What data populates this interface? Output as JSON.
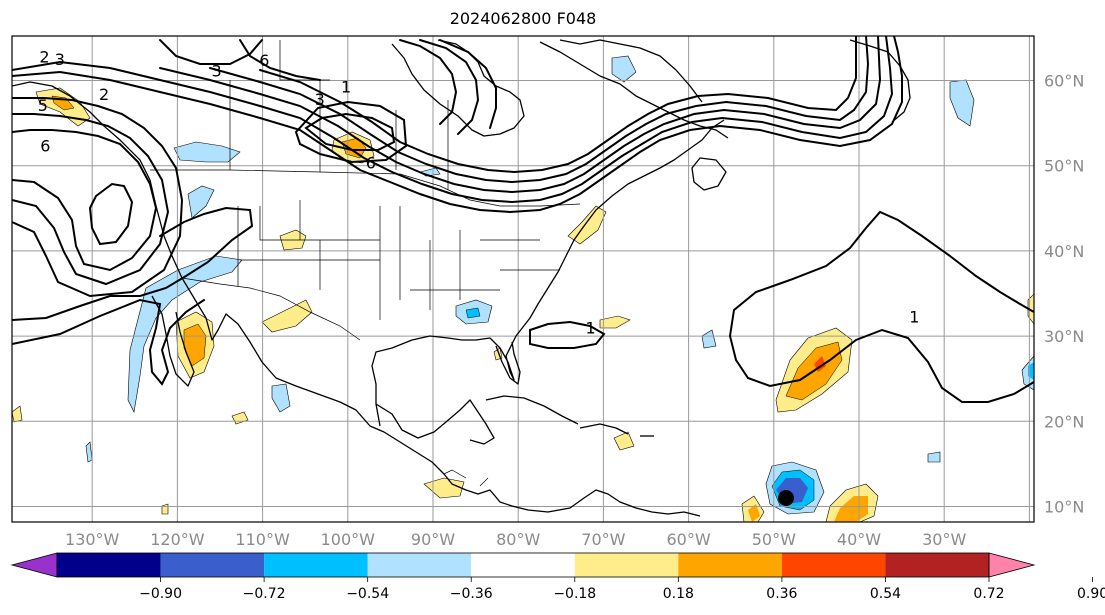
{
  "title": "2024062800 F048",
  "lon_labels": [
    "130°W",
    "120°W",
    "110°W",
    "100°W",
    "90°W",
    "80°W",
    "70°W",
    "60°W",
    "50°W",
    "40°W",
    "30°W"
  ],
  "lat_labels": [
    "10°N",
    "20°N",
    "30°N",
    "40°N",
    "50°N",
    "60°N"
  ],
  "contour_labels": [
    {
      "text": "2",
      "lon": -135.6,
      "lat": 62.8
    },
    {
      "text": "3",
      "lon": -133.8,
      "lat": 62.5
    },
    {
      "text": "5",
      "lon": -135.8,
      "lat": 57.1
    },
    {
      "text": "2",
      "lon": -128.6,
      "lat": 58.4
    },
    {
      "text": "6",
      "lon": -135.5,
      "lat": 52.4
    },
    {
      "text": "3",
      "lon": -115.4,
      "lat": 61.2
    },
    {
      "text": "6",
      "lon": -109.8,
      "lat": 62.4
    },
    {
      "text": "3",
      "lon": -103.3,
      "lat": 57.8
    },
    {
      "text": "1",
      "lon": -100.2,
      "lat": 59.3
    },
    {
      "text": "6",
      "lon": -97.3,
      "lat": 50.4
    },
    {
      "text": "1",
      "lon": -71.5,
      "lat": 31.0
    },
    {
      "text": "1",
      "lon": -33.5,
      "lat": 32.3
    }
  ],
  "colorbar": {
    "ticks": [
      "−0.90",
      "−0.72",
      "−0.54",
      "−0.36",
      "−0.18",
      "0.18",
      "0.36",
      "0.54",
      "0.72",
      "0.90"
    ],
    "colors": [
      "#9932cc",
      "#00008b",
      "#3a5fcd",
      "#00bfff",
      "#b0e2ff",
      "#ffffff",
      "#ffec8b",
      "#ffa500",
      "#ff4500",
      "#b22222",
      "#ff82ab"
    ]
  },
  "colors": {
    "pos1": "#ffec8b",
    "pos2": "#ffa500",
    "pos3": "#ff4500",
    "neg1": "#b0e2ff",
    "neg2": "#00bfff",
    "neg3": "#3a5fcd",
    "neg4": "#00008b"
  }
}
